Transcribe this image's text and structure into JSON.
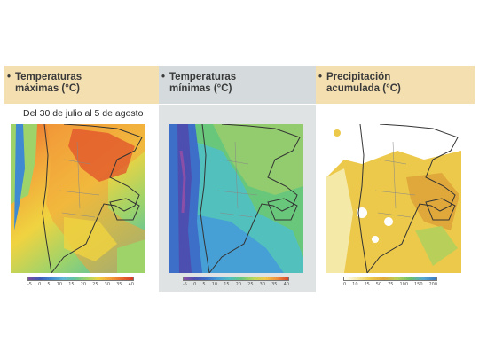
{
  "panels": [
    {
      "title_line1": "Temperaturas",
      "title_line2": "máximas (°C)",
      "legend_ticks": [
        "-5",
        "0",
        "5",
        "10",
        "15",
        "20",
        "25",
        "30",
        "35",
        "40"
      ],
      "legend_colors": [
        "#7a4fa3",
        "#3c59b7",
        "#3f8ad0",
        "#5fb6d6",
        "#63c49a",
        "#9ed36a",
        "#f0d340",
        "#f2a23a",
        "#e96b2e",
        "#d43a2a"
      ]
    },
    {
      "title_line1": "Temperaturas",
      "title_line2": "mínimas (°C)",
      "legend_ticks": [
        "-5",
        "0",
        "5",
        "10",
        "15",
        "20",
        "25",
        "30",
        "35",
        "40"
      ],
      "legend_colors": [
        "#8b4fa8",
        "#4c4fb0",
        "#3d6fc8",
        "#46a0d6",
        "#52c0bd",
        "#69c77c",
        "#b8d85b",
        "#f2c94a",
        "#f0913c",
        "#d9452d"
      ]
    },
    {
      "title_line1": "Precipitación",
      "title_line2": "acumulada (°C)",
      "legend_ticks": [
        "0",
        "10",
        "25",
        "50",
        "75",
        "100",
        "150",
        "200"
      ],
      "legend_colors": [
        "#ffffff",
        "#f5e9a8",
        "#ecc94a",
        "#e0a83a",
        "#b8cf5a",
        "#6cbf6a",
        "#57a9d0",
        "#3d77c0"
      ]
    }
  ],
  "date_range": "Del 30 de julio al 5 de agosto",
  "bullet": "•",
  "colors": {
    "header_warm": "#f4dfb1",
    "header_cool": "#d5dbdc",
    "land_border": "#444444"
  }
}
